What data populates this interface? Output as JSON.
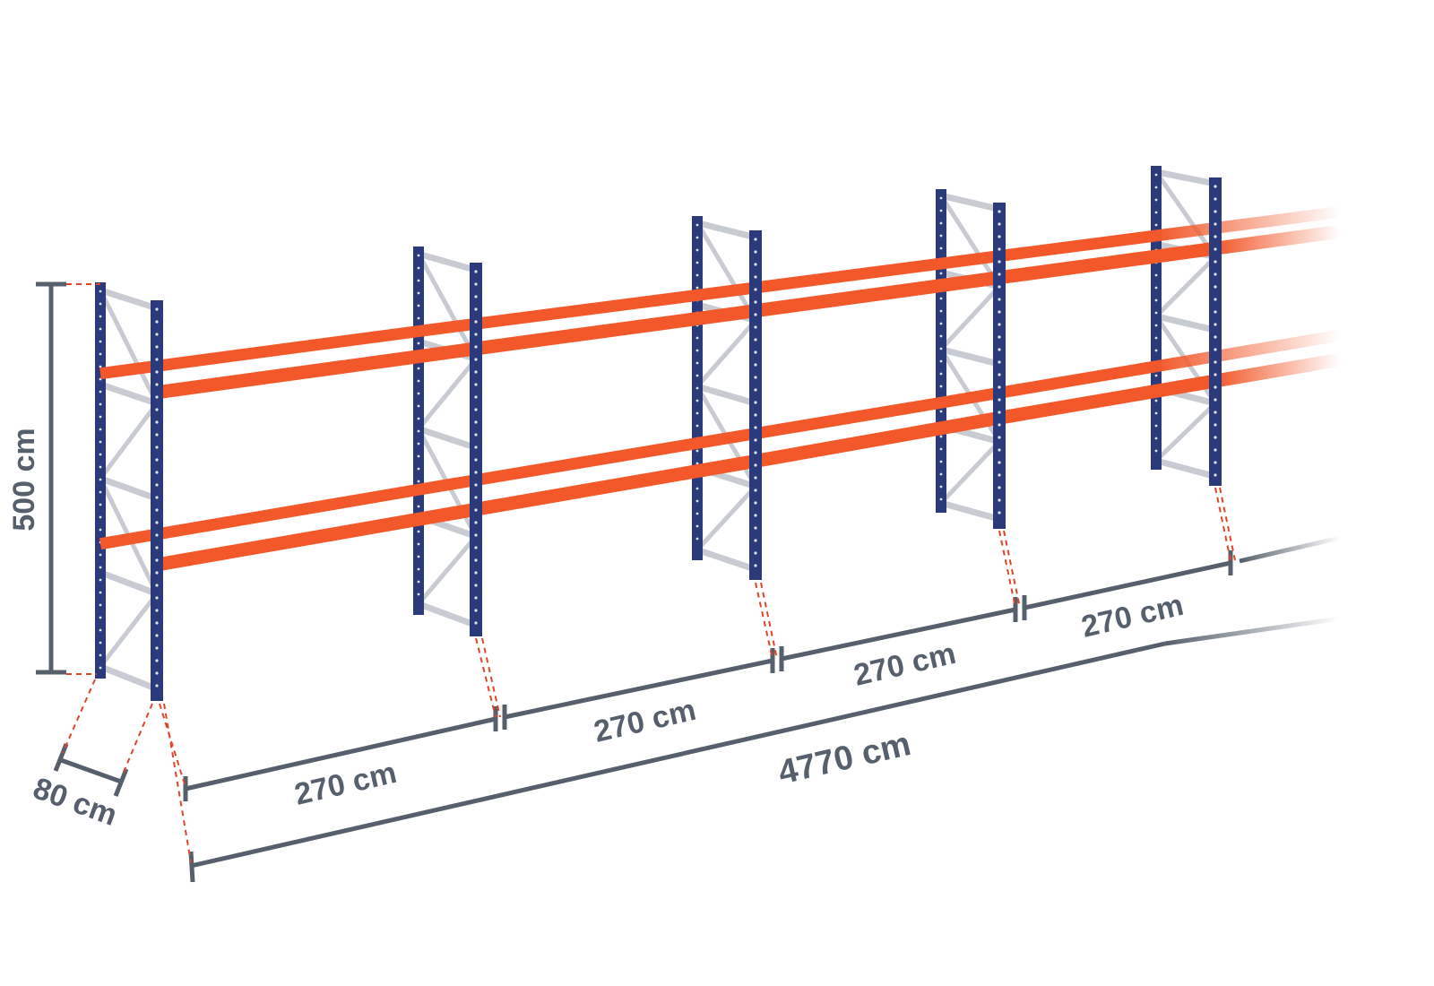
{
  "labels": {
    "height": "500 cm",
    "depth": "80 cm",
    "bay_1": "270 cm",
    "bay_2": "270 cm",
    "bay_3": "270 cm",
    "bay_4": "270 cm",
    "total_length": "4770 cm"
  },
  "colors": {
    "upright": "#2a3a7a",
    "beam": "#f2582a",
    "bracing": "#c8ccd2",
    "dimension_line": "#56606c",
    "guide_dash": "#e0452a"
  }
}
